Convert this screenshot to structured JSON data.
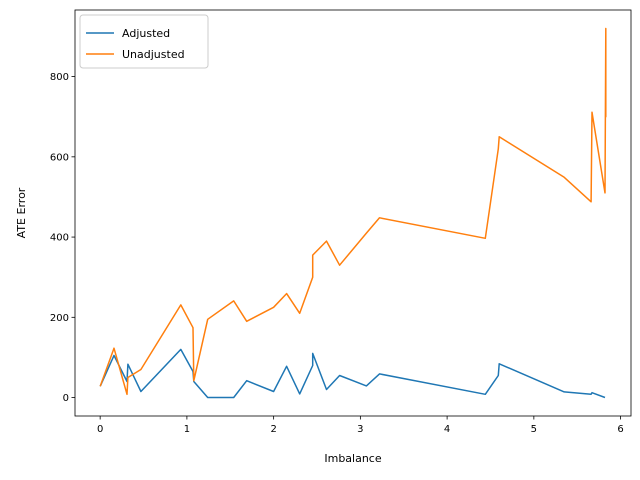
{
  "chart_data": {
    "type": "line",
    "title": "",
    "xlabel": "Imbalance",
    "ylabel": "ATE Error",
    "xlim": [
      -0.29,
      6.12
    ],
    "ylim": [
      -46,
      966
    ],
    "xticks": [
      0,
      1,
      2,
      3,
      4,
      5,
      6
    ],
    "yticks": [
      0,
      200,
      400,
      600,
      800
    ],
    "grid": false,
    "legend_position": "upper left",
    "series": [
      {
        "name": "Adjusted",
        "color": "#1f77b4",
        "x": [
          0.0,
          0.16,
          0.31,
          0.32,
          0.47,
          0.93,
          1.07,
          1.08,
          1.24,
          1.54,
          1.69,
          2.0,
          2.15,
          2.3,
          2.45,
          2.45,
          2.61,
          2.76,
          3.07,
          3.22,
          4.44,
          4.59,
          4.6,
          5.35,
          5.66,
          5.67,
          5.82
        ],
        "y": [
          28,
          105,
          40,
          83,
          15,
          120,
          65,
          40,
          0,
          0,
          42,
          15,
          78,
          9,
          80,
          110,
          20,
          55,
          29,
          59,
          8,
          55,
          84,
          14,
          8,
          12,
          0
        ]
      },
      {
        "name": "Unadjusted",
        "color": "#ff7f0e",
        "x": [
          0.0,
          0.16,
          0.31,
          0.32,
          0.47,
          0.93,
          1.07,
          1.08,
          1.24,
          1.54,
          1.69,
          2.0,
          2.15,
          2.3,
          2.45,
          2.45,
          2.61,
          2.76,
          3.07,
          3.22,
          4.44,
          4.59,
          4.6,
          5.35,
          5.66,
          5.67,
          5.82,
          5.83,
          5.83,
          5.83
        ],
        "y": [
          28,
          123,
          8,
          50,
          70,
          231,
          174,
          42,
          195,
          241,
          190,
          225,
          259,
          210,
          300,
          355,
          390,
          330,
          410,
          448,
          397,
          620,
          650,
          549,
          488,
          711,
          510,
          920,
          700,
          760
        ]
      }
    ]
  }
}
